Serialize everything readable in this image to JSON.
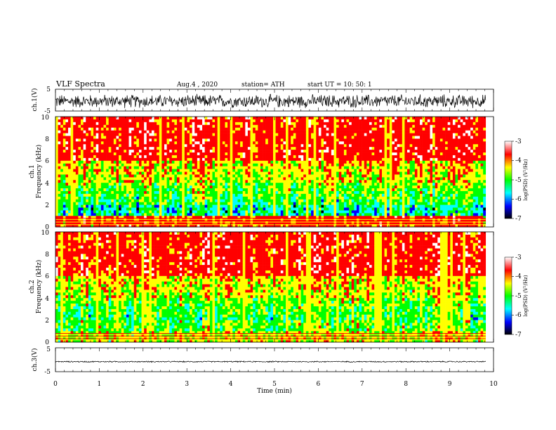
{
  "header": {
    "title": "VLF  Spectra",
    "date": "Aug.4  , 2020",
    "station": "station= ATH",
    "start": "start  UT  =    10: 50: 1"
  },
  "colors": {
    "spectrum": [
      "#000000",
      "#0000ff",
      "#00ffff",
      "#00ff00",
      "#ffff00",
      "#ff0000",
      "#ffffff"
    ],
    "trace": "#000000"
  },
  "chart_data": [
    {
      "type": "line",
      "name": "ch1-waveform",
      "ylabel": "ch.1(V)",
      "ylim": [
        -5,
        5
      ],
      "yticks": [
        "5",
        "-5"
      ],
      "xlim": [
        0,
        10
      ],
      "x_extent": [
        0,
        9.82
      ],
      "baseline": -0.5,
      "amplitude": 3.5
    },
    {
      "type": "heatmap",
      "name": "ch1-spectrogram",
      "ylabel": "ch.1\nFrequency (kHz)",
      "ylim": [
        0,
        10
      ],
      "yticks": [
        "0",
        "2",
        "4",
        "6",
        "8",
        "10"
      ],
      "xlim": [
        0,
        10
      ],
      "x_extent": [
        0,
        9.82
      ],
      "colorbar": {
        "label": "log(PSD) (V²/Hz)",
        "range": [
          -7,
          -3
        ],
        "ticks": [
          "-3",
          "-4",
          "-5",
          "-6",
          "-7"
        ]
      }
    },
    {
      "type": "heatmap",
      "name": "ch2-spectrogram",
      "ylabel": "ch.2\nFrequency (kHz)",
      "ylim": [
        0,
        10
      ],
      "yticks": [
        "0",
        "2",
        "4",
        "6",
        "8",
        "10"
      ],
      "xlim": [
        0,
        10
      ],
      "x_extent": [
        0,
        9.82
      ],
      "colorbar": {
        "label": "log(PSD) (V²/Hz)",
        "range": [
          -7,
          -3
        ],
        "ticks": [
          "-3",
          "-4",
          "-5",
          "-6",
          "-7"
        ]
      }
    },
    {
      "type": "line",
      "name": "ch3-waveform",
      "ylabel": "ch.3(V)",
      "ylim": [
        -5,
        5
      ],
      "yticks": [
        "5",
        "-5"
      ],
      "xlim": [
        0,
        10
      ],
      "x_extent": [
        0,
        9.82
      ],
      "baseline": -0.8,
      "amplitude": 0.3
    }
  ],
  "xaxis": {
    "label": "Time  (min)",
    "ticks": [
      "0",
      "1",
      "2",
      "3",
      "4",
      "5",
      "6",
      "7",
      "8",
      "9",
      "10"
    ]
  }
}
